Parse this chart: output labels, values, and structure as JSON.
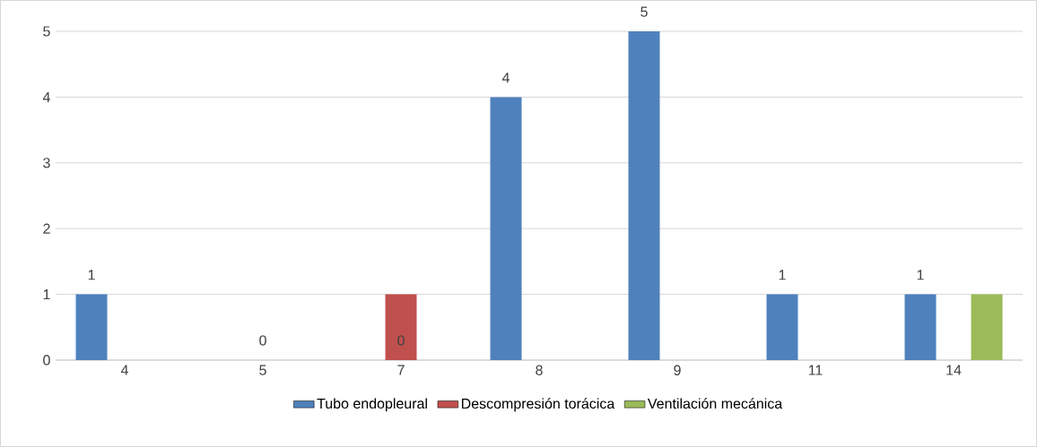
{
  "chart_data": {
    "type": "bar",
    "categories": [
      "4",
      "5",
      "7",
      "8",
      "9",
      "11",
      "14"
    ],
    "series": [
      {
        "name": "Tubo endopleural",
        "color": "#4f81bd",
        "values": [
          1,
          0,
          0,
          4,
          5,
          1,
          1
        ],
        "value_labels": [
          "1",
          "0",
          "0",
          "4",
          "5",
          "1",
          "1"
        ]
      },
      {
        "name": "Descompresión torácica",
        "color": "#c0504d",
        "values": [
          null,
          null,
          1,
          null,
          null,
          null,
          null
        ]
      },
      {
        "name": "Ventilación mecánica",
        "color": "#9bbb59",
        "values": [
          null,
          null,
          null,
          null,
          null,
          null,
          1
        ]
      }
    ],
    "ylim": [
      0,
      5
    ],
    "yticks": [
      0,
      1,
      2,
      3,
      4,
      5
    ],
    "grid": "y",
    "legend": "bottom"
  }
}
